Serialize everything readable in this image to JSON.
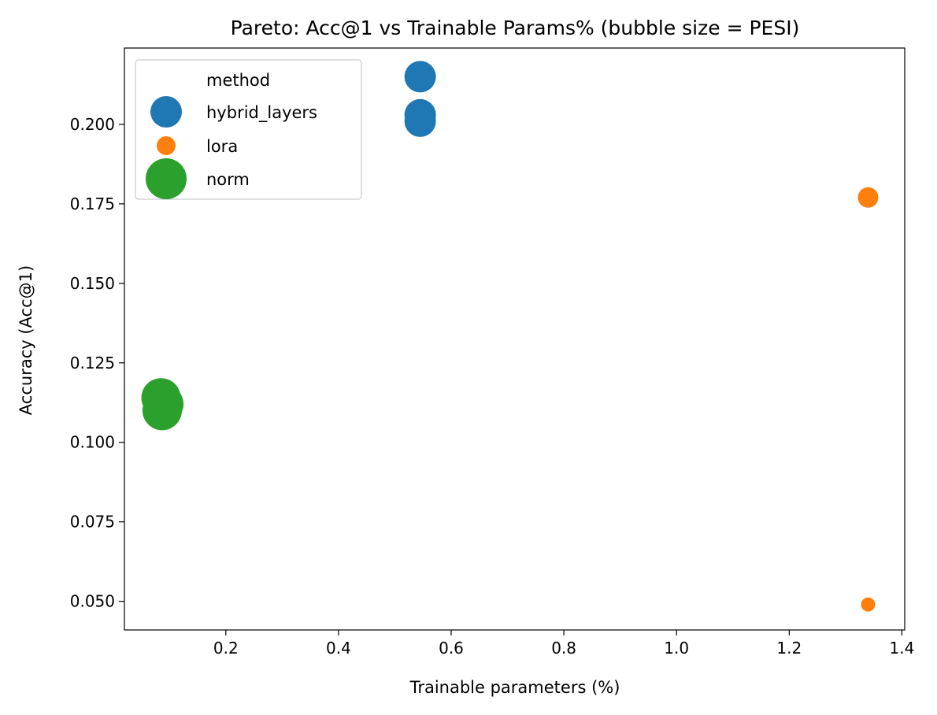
{
  "chart_data": {
    "type": "scatter",
    "title": "Pareto: Acc@1 vs Trainable Params% (bubble size = PESI)",
    "xlabel": "Trainable parameters (%)",
    "ylabel": "Accuracy (Acc@1)",
    "xlim": [
      0.02,
      1.405
    ],
    "ylim": [
      0.041,
      0.224
    ],
    "xticks": [
      0.2,
      0.4,
      0.6,
      0.8,
      1.0,
      1.2,
      1.4
    ],
    "xtick_labels": [
      "0.2",
      "0.4",
      "0.6",
      "0.8",
      "1.0",
      "1.2",
      "1.4"
    ],
    "yticks": [
      0.05,
      0.075,
      0.1,
      0.125,
      0.15,
      0.175,
      0.2
    ],
    "ytick_labels": [
      "0.050",
      "0.075",
      "0.100",
      "0.125",
      "0.150",
      "0.175",
      "0.200"
    ],
    "grid": false,
    "legend": {
      "title": "method",
      "placement": "upper-left",
      "entries": [
        {
          "label": "hybrid_layers",
          "color": "#1f77b4",
          "size": 2.0
        },
        {
          "label": "lora",
          "color": "#ff7f0e",
          "size": 1.2
        },
        {
          "label": "norm",
          "color": "#2ca02c",
          "size": 2.6
        }
      ]
    },
    "series": [
      {
        "name": "hybrid_layers",
        "color": "#1f77b4",
        "points": [
          {
            "x": 0.545,
            "y": 0.215,
            "size": 2.0
          },
          {
            "x": 0.545,
            "y": 0.203,
            "size": 2.0
          },
          {
            "x": 0.545,
            "y": 0.201,
            "size": 2.0
          }
        ]
      },
      {
        "name": "lora",
        "color": "#ff7f0e",
        "points": [
          {
            "x": 1.34,
            "y": 0.177,
            "size": 1.3
          },
          {
            "x": 1.34,
            "y": 0.049,
            "size": 0.9
          }
        ]
      },
      {
        "name": "norm",
        "color": "#2ca02c",
        "points": [
          {
            "x": 0.085,
            "y": 0.114,
            "size": 2.5
          },
          {
            "x": 0.09,
            "y": 0.112,
            "size": 2.5
          },
          {
            "x": 0.087,
            "y": 0.11,
            "size": 2.5
          }
        ]
      }
    ]
  }
}
